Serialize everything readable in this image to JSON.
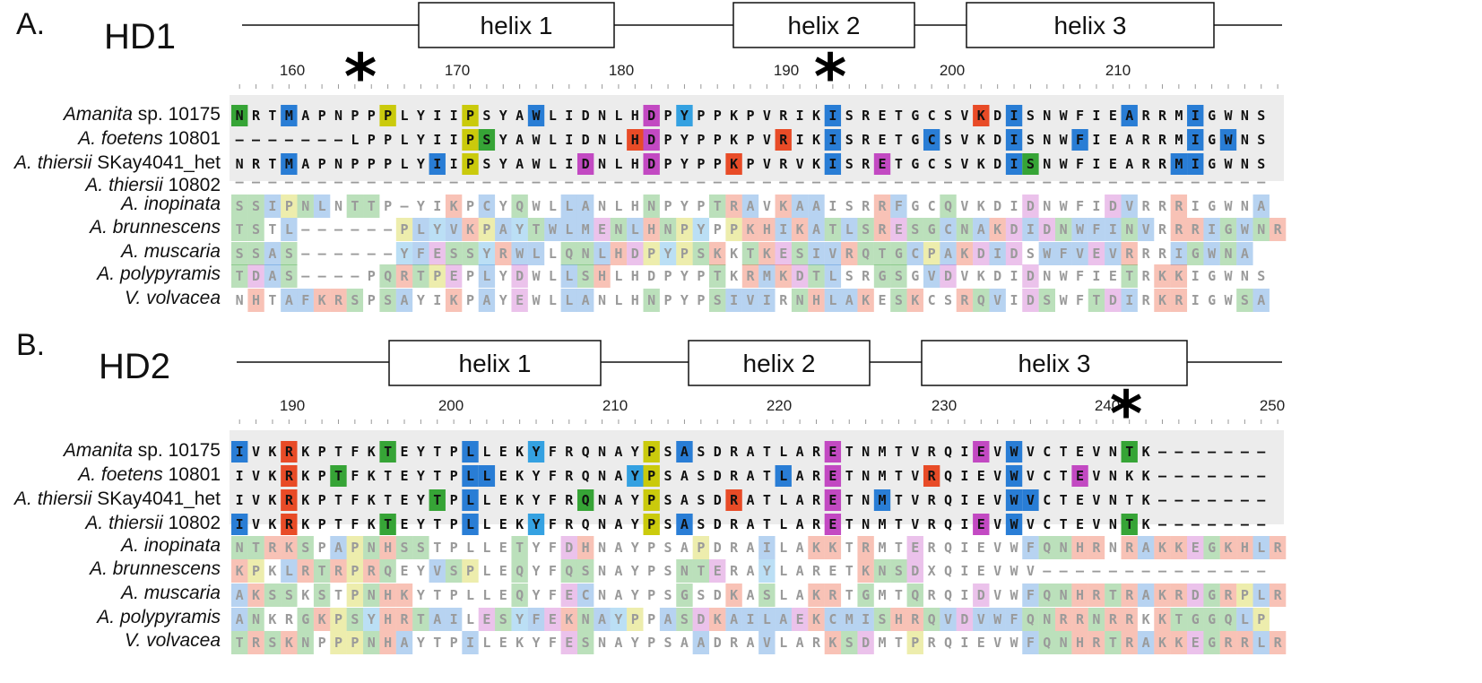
{
  "panels": [
    {
      "id": "a",
      "letter": "A.",
      "domain": "HD1",
      "helices": [
        "helix 1",
        "helix 2",
        "helix 3"
      ],
      "ticks": [
        "160",
        "170",
        "180",
        "190",
        "200",
        "210"
      ],
      "species": [
        {
          "italic": "Amanita",
          "rest": " sp. 10175"
        },
        {
          "italic": "A. foetens",
          "rest": " 10801"
        },
        {
          "italic": "A. thiersii",
          "rest": " SKay4041_het"
        },
        {
          "italic": "A. thiersii",
          "rest": " 10802"
        },
        {
          "italic": "A. inopinata",
          "rest": ""
        },
        {
          "italic": "A. brunnescens",
          "rest": ""
        },
        {
          "italic": "A. muscaria",
          "rest": ""
        },
        {
          "italic": "A. polypyramis",
          "rest": ""
        },
        {
          "italic": "V. volvacea",
          "rest": ""
        }
      ],
      "sequences": [
        "NRTMAPNPPPLYIIPSYAWLIDNLHDPYPPKPVRIKISRETGCSVKDISNWFIEARRMIGWNS",
        "-------LPPLYIIPSYAWLIDNLHDPYPPKPVRIKISRETGCSVKDISNWFIEARRMIGWNS",
        "NRTMAPNPPPLYIIPSYAWLIDNLHDPYPPKPVRVKISRETGCSVKDISNWFIEARRMIGWNS",
        "---------------------------------------------------------------",
        "SSIPNLNTTP-YIKPCYQWLLANLHNPYPTRAVKAAISRRFGCQVKDIDNWFIDVRRRIGWNA",
        "TSTL------PLYVKPAYTWLMENLHNPYPPKHIKATLSRESGCNAKDIDNWFINVRRRIGWNR",
        "SSAS------YFESSYRWLLQNLHDPYPSKKTKESIVRQTGCPAKDIDSWFVEVRRRIGWNA",
        "TDAS----PQRTPEPLYDWLLSHLHDPYPTKRMKDTLSRGSGVDVKDIDNWFIETRKKIGWNS",
        "NHTAFKRSPSAYIKPAYEWLLANLHNPYPSIVIRNHLAKESKCSRQVIDSWFTDIRKRIGWSA"
      ]
    },
    {
      "id": "b",
      "letter": "B.",
      "domain": "HD2",
      "helices": [
        "helix 1",
        "helix 2",
        "helix 3"
      ],
      "ticks": [
        "190",
        "200",
        "210",
        "220",
        "230",
        "240",
        "250"
      ],
      "species": [
        {
          "italic": "Amanita",
          "rest": " sp. 10175"
        },
        {
          "italic": "A. foetens",
          "rest": " 10801"
        },
        {
          "italic": "A. thiersii",
          "rest": " SKay4041_het"
        },
        {
          "italic": "A. thiersii",
          "rest": " 10802"
        },
        {
          "italic": "A. inopinata",
          "rest": ""
        },
        {
          "italic": "A. brunnescens",
          "rest": ""
        },
        {
          "italic": "A. muscaria",
          "rest": ""
        },
        {
          "italic": "A. polypyramis",
          "rest": ""
        },
        {
          "italic": "V. volvacea",
          "rest": ""
        }
      ],
      "sequences": [
        "IVKRKPTFKTEYTPLLEKYFRQNAYPSASDRATLARETNMTVRQIEVWVCTEVNTK-------",
        "IVKRKPTFKTEYTPLLEKYFRQNAYPSASDRATLARETNMTVRQIEVWVCTEVNKK-------",
        "IVKRKPTFKTEYTPLLEKYFRQNAYPSASDRATLARETNMTVRQIEVWVCTEVNTK-------",
        "IVKRKPTFKTEYTPLLEKYFRQNAYPSASDRATLARETNMTVRQIEVWVCTEVNTK-------",
        "NTRKSPAPNHSSTPLLETYFDHNAYPSAPDRAILAKKTRMTERQIEVWFQNHRNRAKKEGKHLR",
        "KPKLRTRPRQEYVSPLEQYFQSNAYPSNTERAYLARETKNSDXQIEVWV--------------",
        "AKSSKSTPNHKYTPLLEQYFECNAYPSGSDKASLAKRTGMTQRQIDVWFQNHRTRAKRDGRPLR",
        "ANKRGKPSYHRTAILESYFEKNAYPPASDKAILAEKCMISHRQVDVWFQNRRNRRKKTGGQLP",
        "TRSKNPPPNHAYTPILEKYFESNAYPSAADRAVLARKSDMTPRQIEVWFQNHRTRAKKEGRRLR"
      ]
    }
  ]
}
